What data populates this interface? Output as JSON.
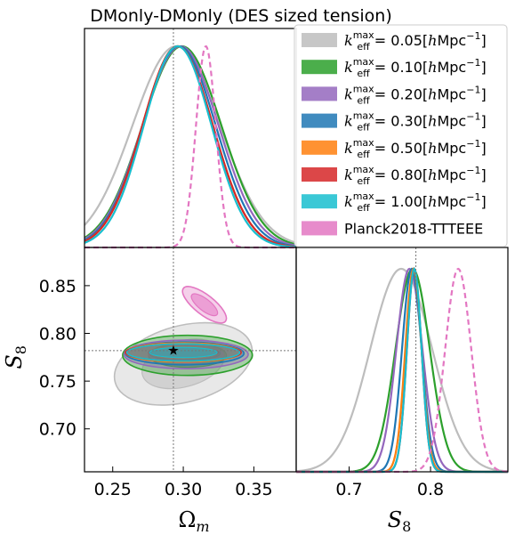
{
  "chart_data": {
    "type": "corner-plot",
    "title": "DMonly-DMonly (DES sized tension)",
    "fiducial": {
      "omega_m": 0.293,
      "s8": 0.782
    },
    "series": [
      {
        "name": "k_eff^max = 0.05[hMpc^-1]",
        "color": "#bdbdbd",
        "omega_m_mean": 0.295,
        "omega_m_sigma": 0.031,
        "s8_mean": 0.764,
        "s8_sigma": 0.038,
        "contour_2d": {
          "center": [
            0.3,
            0.768
          ],
          "widths": [
            0.05,
            0.04
          ],
          "rotation_deg": 15
        }
      },
      {
        "name": "k_eff^max = 0.10[hMpc^-1]",
        "color": "#2ca02c",
        "omega_m_mean": 0.299,
        "omega_m_sigma": 0.028,
        "s8_mean": 0.778,
        "s8_sigma": 0.021,
        "contour_2d": {
          "center": [
            0.303,
            0.777
          ],
          "widths": [
            0.046,
            0.021
          ],
          "rotation_deg": 0
        }
      },
      {
        "name": "k_eff^max = 0.20[hMpc^-1]",
        "color": "#9467bd",
        "omega_m_mean": 0.298,
        "omega_m_sigma": 0.027,
        "s8_mean": 0.774,
        "s8_sigma": 0.016,
        "contour_2d": {
          "center": [
            0.302,
            0.778
          ],
          "widths": [
            0.044,
            0.015
          ],
          "rotation_deg": 0
        }
      },
      {
        "name": "k_eff^max = 0.30[hMpc^-1]",
        "color": "#1f77b4",
        "omega_m_mean": 0.297,
        "omega_m_sigma": 0.026,
        "s8_mean": 0.777,
        "s8_sigma": 0.012,
        "contour_2d": {
          "center": [
            0.301,
            0.779
          ],
          "widths": [
            0.042,
            0.012
          ],
          "rotation_deg": 0
        }
      },
      {
        "name": "k_eff^max = 0.50[hMpc^-1]",
        "color": "#ff7f0e",
        "omega_m_mean": 0.296,
        "omega_m_sigma": 0.025,
        "s8_mean": 0.779,
        "s8_sigma": 0.01,
        "contour_2d": {
          "center": [
            0.3,
            0.78
          ],
          "widths": [
            0.041,
            0.01
          ],
          "rotation_deg": 0
        }
      },
      {
        "name": "k_eff^max = 0.80[hMpc^-1]",
        "color": "#d62728",
        "omega_m_mean": 0.296,
        "omega_m_sigma": 0.025,
        "s8_mean": 0.78,
        "s8_sigma": 0.009,
        "contour_2d": {
          "center": [
            0.3,
            0.78
          ],
          "widths": [
            0.041,
            0.009
          ],
          "rotation_deg": 0
        }
      },
      {
        "name": "k_eff^max = 1.00[hMpc^-1]",
        "color": "#17becf",
        "omega_m_mean": 0.296,
        "omega_m_sigma": 0.024,
        "s8_mean": 0.78,
        "s8_sigma": 0.009,
        "contour_2d": {
          "center": [
            0.3,
            0.78
          ],
          "widths": [
            0.04,
            0.009
          ],
          "rotation_deg": 0
        }
      },
      {
        "name": "Planck2018-TTTEEE",
        "color": "#e377c2",
        "dashed": true,
        "omega_m_mean": 0.316,
        "omega_m_sigma": 0.007,
        "s8_mean": 0.834,
        "s8_sigma": 0.016,
        "contour_2d": {
          "center": [
            0.315,
            0.83
          ],
          "widths": [
            0.007,
            0.028
          ],
          "rotation_deg": 52
        }
      }
    ],
    "axes": {
      "omega_m": {
        "label": "Ω",
        "label_sub": "m",
        "range": [
          0.23,
          0.38
        ],
        "ticks": [
          0.25,
          0.3,
          0.35
        ],
        "tick_labels": [
          "0.25",
          "0.30",
          "0.35"
        ]
      },
      "s8": {
        "label": "S",
        "label_sub": "8",
        "range": [
          0.655,
          0.89
        ],
        "ticks": [
          0.7,
          0.75,
          0.8,
          0.85
        ],
        "tick_labels": [
          "0.70",
          "0.75",
          "0.80",
          "0.85"
        ]
      },
      "s8_1d": {
        "range": [
          0.635,
          0.895
        ],
        "ticks": [
          0.7,
          0.8
        ],
        "tick_labels": [
          "0.7",
          "0.8"
        ]
      }
    },
    "legend": {
      "placement": "top-right",
      "entries": [
        {
          "prefix": "k",
          "sub": "eff",
          "sup": "max",
          "value": " = 0.05[",
          "unit": "h",
          "unit_rest": "Mpc",
          "exp": "−1",
          "close": "]"
        },
        {
          "prefix": "k",
          "sub": "eff",
          "sup": "max",
          "value": " = 0.10[",
          "unit": "h",
          "unit_rest": "Mpc",
          "exp": "−1",
          "close": "]"
        },
        {
          "prefix": "k",
          "sub": "eff",
          "sup": "max",
          "value": " = 0.20[",
          "unit": "h",
          "unit_rest": "Mpc",
          "exp": "−1",
          "close": "]"
        },
        {
          "prefix": "k",
          "sub": "eff",
          "sup": "max",
          "value": " = 0.30[",
          "unit": "h",
          "unit_rest": "Mpc",
          "exp": "−1",
          "close": "]"
        },
        {
          "prefix": "k",
          "sub": "eff",
          "sup": "max",
          "value": " = 0.50[",
          "unit": "h",
          "unit_rest": "Mpc",
          "exp": "−1",
          "close": "]"
        },
        {
          "prefix": "k",
          "sub": "eff",
          "sup": "max",
          "value": " = 0.80[",
          "unit": "h",
          "unit_rest": "Mpc",
          "exp": "−1",
          "close": "]"
        },
        {
          "prefix": "k",
          "sub": "eff",
          "sup": "max",
          "value": " = 1.00[",
          "unit": "h",
          "unit_rest": "Mpc",
          "exp": "−1",
          "close": "]"
        },
        {
          "plain": "Planck2018-TTTEEE"
        }
      ]
    },
    "grid": false
  }
}
